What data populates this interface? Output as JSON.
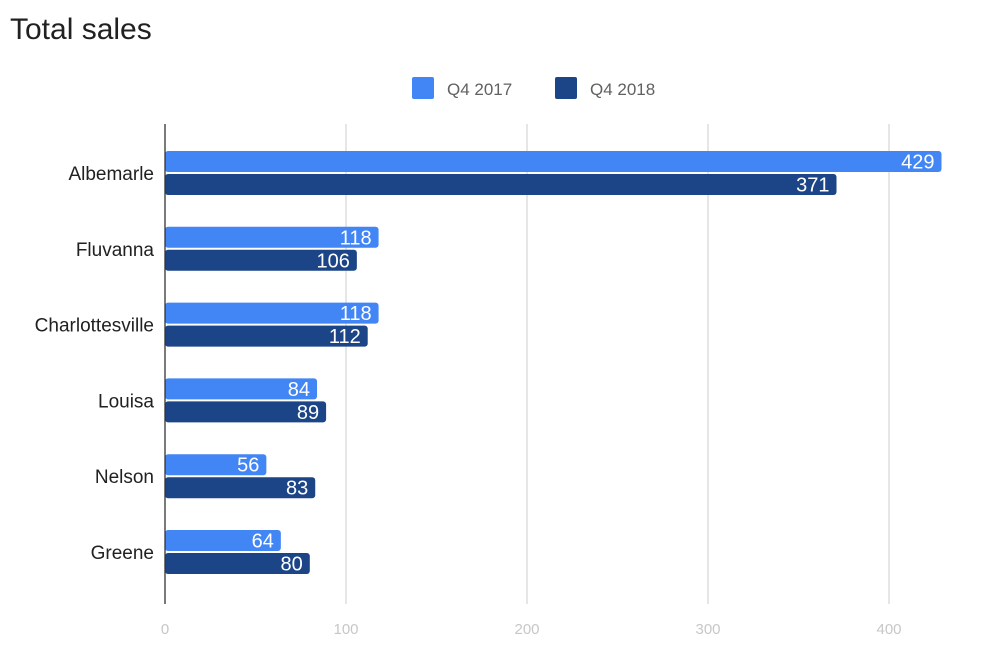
{
  "chart_data": {
    "type": "bar",
    "orientation": "horizontal",
    "title": "Total sales",
    "categories": [
      "Albemarle",
      "Fluvanna",
      "Charlottesville",
      "Louisa",
      "Nelson",
      "Greene"
    ],
    "series": [
      {
        "name": "Q4 2017",
        "color": "#4285f4",
        "values": [
          429,
          118,
          118,
          84,
          56,
          64
        ]
      },
      {
        "name": "Q4 2018",
        "color": "#1c4587",
        "values": [
          371,
          106,
          112,
          89,
          83,
          80
        ]
      }
    ],
    "xlim": [
      0,
      430
    ],
    "xticks": [
      0,
      100,
      200,
      300,
      400
    ],
    "xlabel": "",
    "ylabel": "",
    "grid": true,
    "legend_position": "top-center",
    "data_labels": true
  }
}
